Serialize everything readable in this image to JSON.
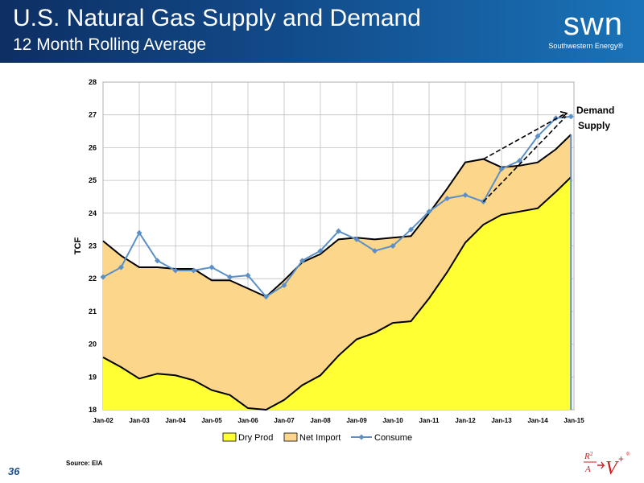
{
  "header": {
    "title": "U.S. Natural Gas Supply and Demand",
    "subtitle": "12 Month Rolling Average",
    "logo_text": "swn",
    "logo_subtext": "Southwestern Energy®"
  },
  "footer": {
    "page_number": "36",
    "source": "Source: EIA"
  },
  "colors": {
    "dry_prod_fill": "#ffff33",
    "net_import_fill": "#fcd68a",
    "consume_line": "#5b8fc7",
    "header_blue": "#124b8a",
    "brand_red": "#cc1d1d"
  },
  "chart_data": {
    "type": "area",
    "ylabel": "TCF",
    "ylim": [
      18,
      28
    ],
    "yticks": [
      "18",
      "19",
      "20",
      "21",
      "22",
      "23",
      "24",
      "25",
      "26",
      "27",
      "28"
    ],
    "x_ticks": [
      "Jan-02",
      "Jan-03",
      "Jan-04",
      "Jan-05",
      "Jan-06",
      "Jan-07",
      "Jan-08",
      "Jan-09",
      "Jan-10",
      "Jan-11",
      "Jan-12",
      "Jan-13",
      "Jan-14",
      "Jan-15"
    ],
    "grid": true,
    "legend_position": "bottom",
    "x": [
      "2002-01",
      "2002-07",
      "2003-01",
      "2003-07",
      "2004-01",
      "2004-07",
      "2005-01",
      "2005-07",
      "2006-01",
      "2006-07",
      "2007-01",
      "2007-07",
      "2008-01",
      "2008-07",
      "2009-01",
      "2009-07",
      "2010-01",
      "2010-07",
      "2011-01",
      "2011-07",
      "2012-01",
      "2012-07",
      "2013-01",
      "2013-07",
      "2014-01",
      "2014-07",
      "2014-12"
    ],
    "series": [
      {
        "name": "Dry Prod",
        "values": [
          19.6,
          19.3,
          18.95,
          19.1,
          19.05,
          18.9,
          18.6,
          18.45,
          18.05,
          17.9,
          18.3,
          18.75,
          19.05,
          19.65,
          20.15,
          20.35,
          20.65,
          20.7,
          21.4,
          22.2,
          23.1,
          23.65,
          23.95,
          24.05,
          24.15,
          24.65,
          25.1
        ]
      },
      {
        "name": "Net Import",
        "values": [
          3.55,
          3.4,
          3.4,
          3.25,
          3.25,
          3.4,
          3.35,
          3.5,
          3.65,
          3.55,
          3.65,
          3.75,
          3.7,
          3.55,
          3.1,
          2.85,
          2.6,
          2.6,
          2.6,
          2.55,
          2.45,
          2.0,
          1.45,
          1.4,
          1.4,
          1.3,
          1.3
        ]
      },
      {
        "name": "Consume",
        "values": [
          22.05,
          22.35,
          23.4,
          22.55,
          22.25,
          22.25,
          22.35,
          22.05,
          22.1,
          21.45,
          21.8,
          22.55,
          22.85,
          23.45,
          23.2,
          22.85,
          23.0,
          23.5,
          24.05,
          24.45,
          24.55,
          24.35,
          25.35,
          25.6,
          26.35,
          26.9,
          26.95
        ]
      }
    ],
    "trend_labels": {
      "demand": "Demand",
      "supply": "Supply"
    }
  }
}
